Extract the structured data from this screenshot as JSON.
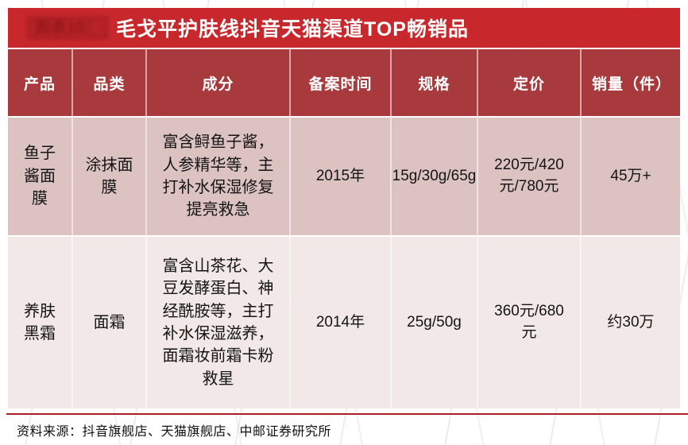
{
  "banner": {
    "figure_label": "图表10：",
    "title": "毛戈平护肤线抖音天猫渠道TOP畅销品"
  },
  "table": {
    "columns": [
      "产品",
      "品类",
      "成分",
      "备案时间",
      "规格",
      "定价",
      "销量（件）"
    ],
    "rows": [
      {
        "product": "鱼子酱面膜",
        "category": "涂抹面膜",
        "ingredients": "富含鲟鱼子酱，人参精华等，主打补水保湿修复提亮救急",
        "filing_time": "2015年",
        "spec": "15g/30g/65g",
        "price": "220元/420元/780元",
        "sales": "45万+"
      },
      {
        "product": "养肤黑霜",
        "category": "面霜",
        "ingredients": "富含山茶花、大豆发酵蛋白、神经酰胺等，主打补水保湿滋养，面霜妆前霜卡粉救星",
        "filing_time": "2014年",
        "spec": "25g/50g",
        "price": "360元/680元",
        "sales": "约30万"
      }
    ]
  },
  "footer": {
    "source": "资料来源：抖音旗舰店、天猫旗舰店、中邮证券研究所"
  },
  "colors": {
    "banner_red": "#C8282C",
    "header_red": "#A83A3D",
    "row_odd_pink": "#DCC3C2",
    "row_even_pink": "#F1E8E7",
    "rule_red": "#AD1F23"
  }
}
